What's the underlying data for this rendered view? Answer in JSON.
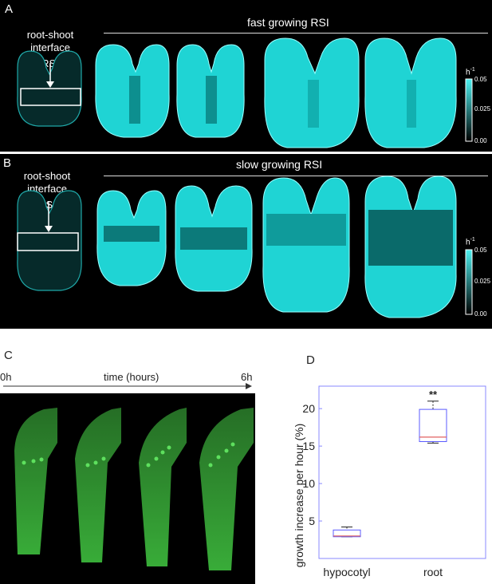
{
  "colors": {
    "cyan": "#2ee6e6",
    "green": "#3fbf3f",
    "box_blue": "#5b5bff",
    "median_red": "#e06060"
  },
  "panelA": {
    "label": "A",
    "title": "fast growing RSI",
    "rsi_label_line1": "root-shoot interface",
    "rsi_label_line2": "(RSI)",
    "colorbar": {
      "unit": "h",
      "unit_exp": "-1",
      "max": "0.05",
      "mid": "0.025",
      "min": "0.00"
    }
  },
  "panelB": {
    "label": "B",
    "title": "slow growing RSI",
    "rsi_label_line1": "root-shoot interface",
    "rsi_label_line2": "(RSI)",
    "colorbar": {
      "unit": "h",
      "unit_exp": "-1",
      "max": "0.05",
      "mid": "0.025",
      "min": "0.00"
    }
  },
  "panelC": {
    "label": "C",
    "start_label": "0h",
    "axis_label": "time (hours)",
    "end_label": "6h"
  },
  "panelD": {
    "label": "D",
    "chart_data": {
      "type": "box",
      "categories": [
        "hypocotyl",
        "root"
      ],
      "ylabel": "growth increase per hour (%)",
      "ylim": [
        0,
        23
      ],
      "yticks": [
        "5",
        "10",
        "15",
        "20"
      ],
      "boxes": [
        {
          "name": "hypocotyl",
          "min": 2.9,
          "q1": 2.9,
          "median": 3.0,
          "q3": 3.8,
          "max": 4.2
        },
        {
          "name": "root",
          "min": 15.4,
          "q1": 15.6,
          "median": 16.2,
          "q3": 19.9,
          "max": 21.0
        }
      ],
      "annotation": "**"
    }
  }
}
